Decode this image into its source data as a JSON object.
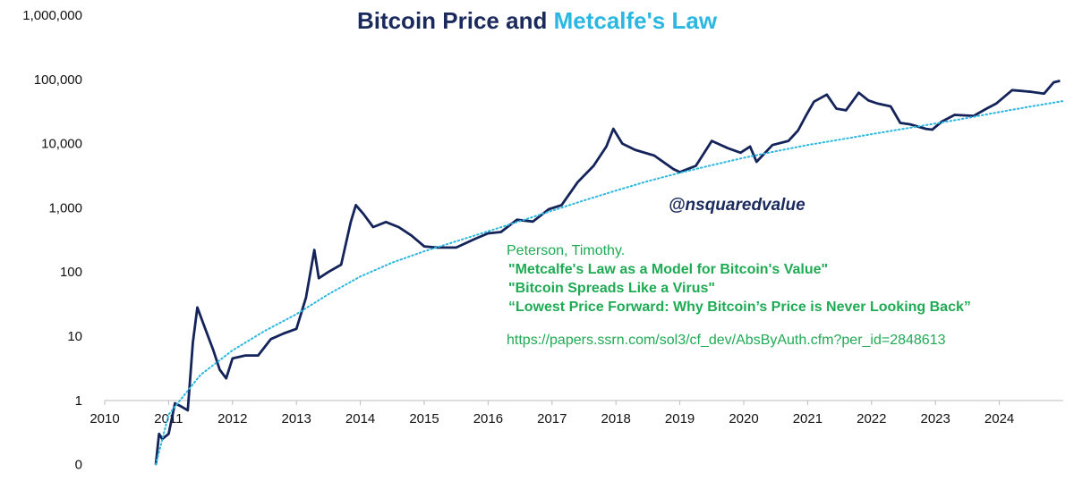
{
  "chart_data": {
    "type": "line",
    "title_parts": [
      "Bitcoin",
      "Price and",
      "Metcalfe's Law"
    ],
    "y_scale": "log",
    "ylim": [
      0,
      1000000
    ],
    "y_ticks": [
      "1,000,000",
      "100,000",
      "10,000",
      "1,000",
      "100",
      "10",
      "1",
      "0"
    ],
    "x_ticks": [
      "2010",
      "2011",
      "2012",
      "2013",
      "2014",
      "2015",
      "2016",
      "2017",
      "2018",
      "2019",
      "2020",
      "2021",
      "2022",
      "2023",
      "2024"
    ],
    "xlim": [
      2010,
      2025
    ],
    "grid": false,
    "series": [
      {
        "style": "solid",
        "color": "#14245a",
        "points": [
          [
            2010.8,
            0.1
          ],
          [
            2010.85,
            0.3
          ],
          [
            2010.9,
            0.25
          ],
          [
            2011.0,
            0.3
          ],
          [
            2011.1,
            0.9
          ],
          [
            2011.2,
            0.8
          ],
          [
            2011.3,
            0.7
          ],
          [
            2011.38,
            8
          ],
          [
            2011.45,
            28
          ],
          [
            2011.55,
            15
          ],
          [
            2011.7,
            6
          ],
          [
            2011.8,
            3
          ],
          [
            2011.9,
            2.2
          ],
          [
            2012.0,
            4.5
          ],
          [
            2012.2,
            5
          ],
          [
            2012.4,
            5
          ],
          [
            2012.6,
            9
          ],
          [
            2012.8,
            11
          ],
          [
            2013.0,
            13
          ],
          [
            2013.15,
            40
          ],
          [
            2013.28,
            220
          ],
          [
            2013.35,
            80
          ],
          [
            2013.5,
            100
          ],
          [
            2013.7,
            130
          ],
          [
            2013.85,
            600
          ],
          [
            2013.93,
            1100
          ],
          [
            2014.05,
            800
          ],
          [
            2014.2,
            500
          ],
          [
            2014.4,
            600
          ],
          [
            2014.6,
            500
          ],
          [
            2014.8,
            370
          ],
          [
            2015.0,
            250
          ],
          [
            2015.2,
            240
          ],
          [
            2015.5,
            240
          ],
          [
            2015.8,
            330
          ],
          [
            2016.0,
            400
          ],
          [
            2016.2,
            420
          ],
          [
            2016.45,
            650
          ],
          [
            2016.7,
            610
          ],
          [
            2016.95,
            950
          ],
          [
            2017.15,
            1100
          ],
          [
            2017.4,
            2500
          ],
          [
            2017.65,
            4500
          ],
          [
            2017.85,
            9000
          ],
          [
            2017.96,
            17000
          ],
          [
            2018.1,
            10000
          ],
          [
            2018.3,
            8000
          ],
          [
            2018.6,
            6500
          ],
          [
            2018.9,
            4000
          ],
          [
            2019.0,
            3600
          ],
          [
            2019.25,
            4500
          ],
          [
            2019.5,
            11000
          ],
          [
            2019.75,
            8500
          ],
          [
            2019.95,
            7200
          ],
          [
            2020.1,
            9000
          ],
          [
            2020.2,
            5200
          ],
          [
            2020.45,
            9500
          ],
          [
            2020.7,
            11000
          ],
          [
            2020.85,
            16000
          ],
          [
            2020.98,
            28000
          ],
          [
            2021.1,
            45000
          ],
          [
            2021.3,
            58000
          ],
          [
            2021.45,
            35000
          ],
          [
            2021.6,
            33000
          ],
          [
            2021.8,
            62000
          ],
          [
            2021.95,
            47000
          ],
          [
            2022.1,
            42000
          ],
          [
            2022.3,
            38000
          ],
          [
            2022.45,
            21000
          ],
          [
            2022.6,
            20000
          ],
          [
            2022.85,
            17000
          ],
          [
            2022.95,
            16500
          ],
          [
            2023.1,
            22000
          ],
          [
            2023.3,
            28000
          ],
          [
            2023.6,
            27000
          ],
          [
            2023.8,
            35000
          ],
          [
            2023.95,
            42000
          ],
          [
            2024.2,
            68000
          ],
          [
            2024.5,
            64000
          ],
          [
            2024.7,
            60000
          ],
          [
            2024.85,
            90000
          ],
          [
            2024.95,
            95000
          ]
        ]
      },
      {
        "style": "dotted",
        "color": "#2bb7e0",
        "points": [
          [
            2010.8,
            0.1
          ],
          [
            2011.0,
            0.6
          ],
          [
            2011.5,
            2.5
          ],
          [
            2012.0,
            6
          ],
          [
            2012.5,
            12
          ],
          [
            2013.0,
            22
          ],
          [
            2013.5,
            45
          ],
          [
            2014.0,
            85
          ],
          [
            2014.5,
            140
          ],
          [
            2015.0,
            210
          ],
          [
            2015.5,
            300
          ],
          [
            2016.0,
            430
          ],
          [
            2016.5,
            620
          ],
          [
            2017.0,
            900
          ],
          [
            2017.5,
            1300
          ],
          [
            2018.0,
            1850
          ],
          [
            2018.5,
            2600
          ],
          [
            2019.0,
            3500
          ],
          [
            2019.5,
            4600
          ],
          [
            2020.0,
            6000
          ],
          [
            2020.5,
            7600
          ],
          [
            2021.0,
            9500
          ],
          [
            2021.5,
            11500
          ],
          [
            2022.0,
            14000
          ],
          [
            2022.5,
            17000
          ],
          [
            2023.0,
            20500
          ],
          [
            2023.5,
            25000
          ],
          [
            2024.0,
            31000
          ],
          [
            2024.5,
            38000
          ],
          [
            2025.0,
            46000
          ]
        ]
      }
    ]
  },
  "annotations": {
    "handle": "@nsquaredvalue",
    "author": "Peterson, Timothy.",
    "refs": [
      "\"Metcalfe's Law as a Model for Bitcoin's Value\"",
      "\"Bitcoin Spreads Like a Virus\"",
      "“Lowest Price Forward: Why Bitcoin’s Price is Never Looking Back”"
    ],
    "url": "https://papers.ssrn.com/sol3/cf_dev/AbsByAuth.cfm?per_id=2848613"
  }
}
